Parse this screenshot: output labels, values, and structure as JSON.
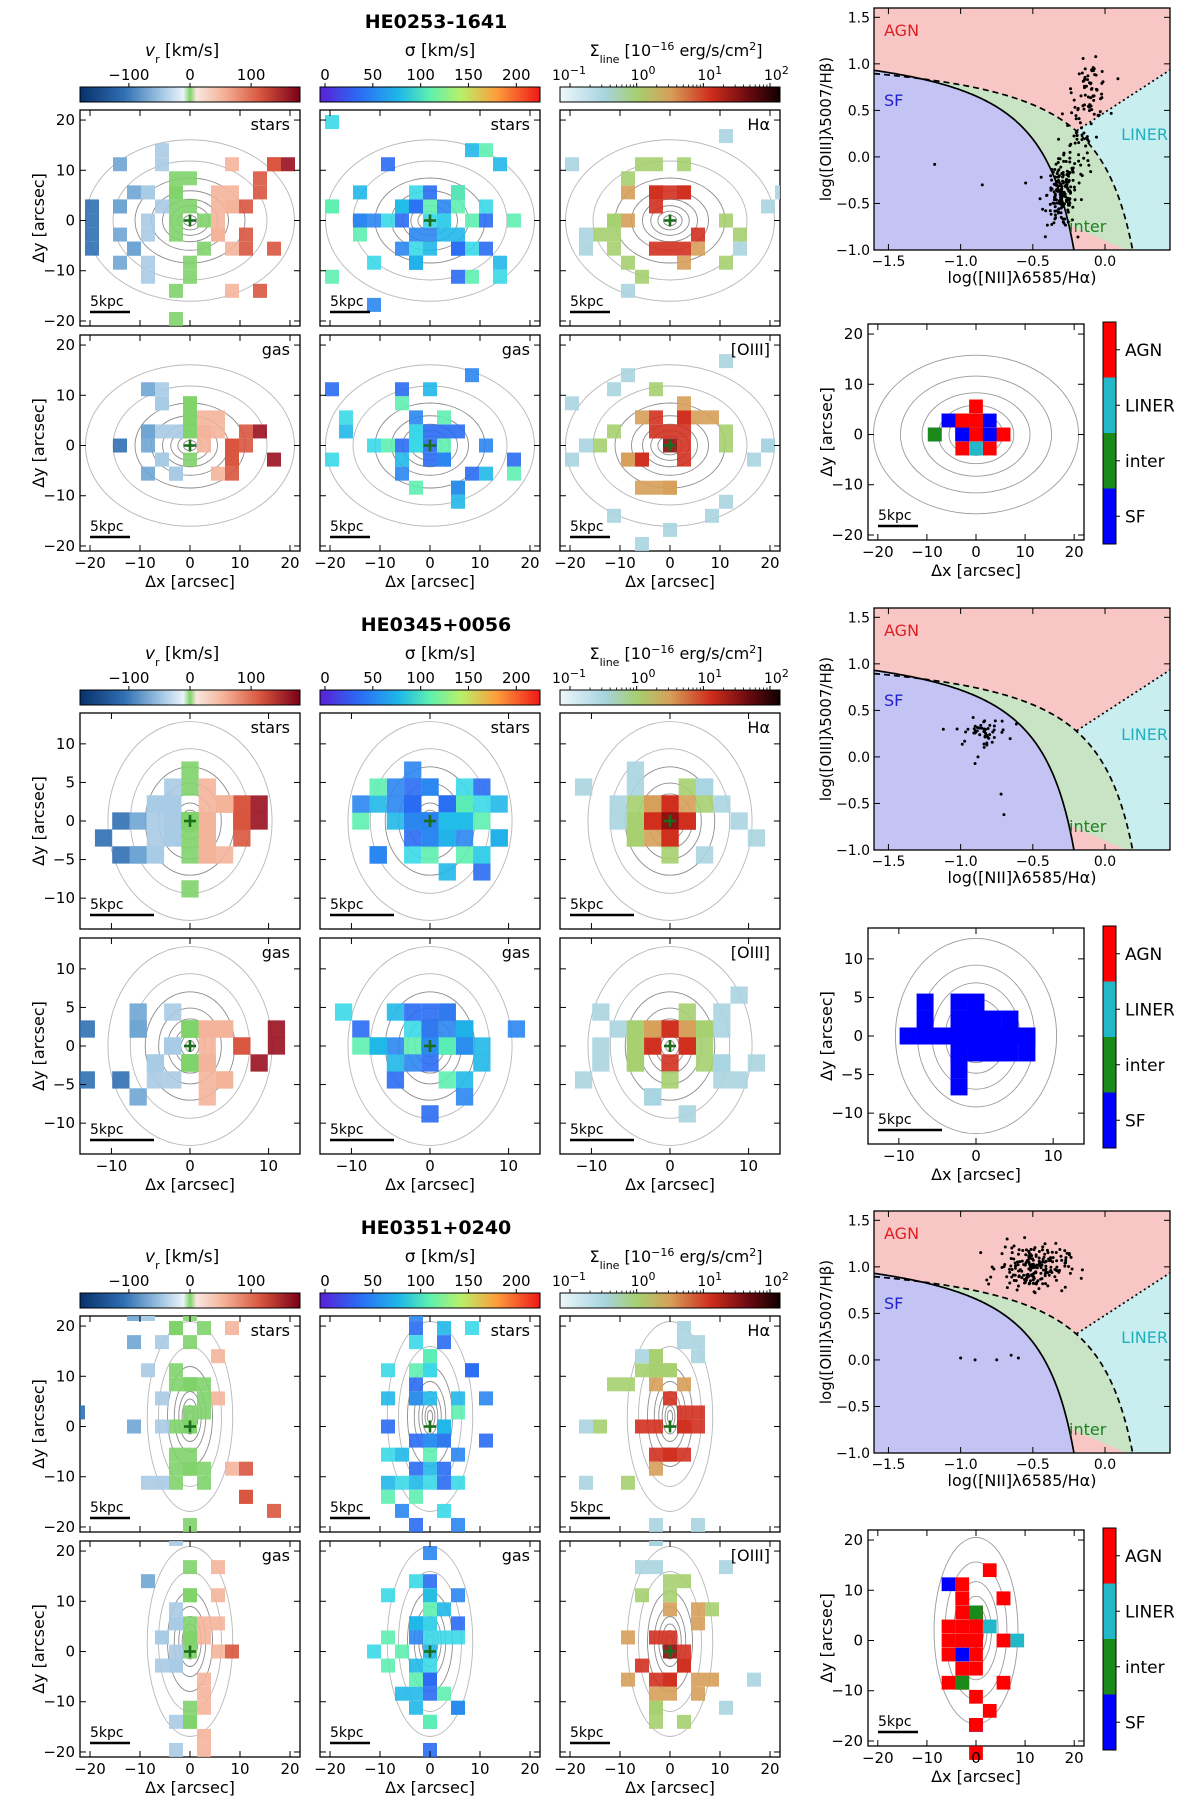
{
  "figure": {
    "labels": {
      "vr": "v",
      "vr_sub": "r",
      "vr_unit": " [km/s]",
      "sigma": "σ [km/s]",
      "sigma_line": "Σ",
      "sigma_line_sub": "line",
      "sigma_line_unit": " [10",
      "sigma_line_exp": "−16",
      "sigma_line_unit2": " erg/s/cm",
      "sigma_line_exp2": "2",
      "sigma_line_close": "]",
      "xlabel": "Δx [arcsec]",
      "ylabel": "Δy [arcsec]",
      "bpt_xlabel": "log([NII]λ6585/Hα)",
      "bpt_ylabel": "log([OIII]λ5007/Hβ)",
      "scale_bar": "5kpc",
      "stars": "stars",
      "gas": "gas",
      "halpha": "Hα",
      "oiii": "[OIII]",
      "agn": "AGN",
      "liner": "LINER",
      "inter": "inter",
      "sf": "SF"
    },
    "colorbars": {
      "vr_ticks": [
        "−100",
        "0",
        "100"
      ],
      "sigma_ticks": [
        "0",
        "50",
        "100",
        "150",
        "200"
      ],
      "flux_ticks": [
        "10",
        "10",
        "10",
        "10"
      ],
      "flux_exps": [
        "−1",
        "0",
        "1",
        "2"
      ],
      "class_ticks": [
        "AGN",
        "LINER",
        "inter",
        "SF"
      ]
    },
    "colors": {
      "agn_region": "#f9c6c6",
      "sf_region": "#c4c4f4",
      "inter_region": "#c8e4c4",
      "liner_region": "#c8eef0",
      "agn_text": "#e02020",
      "sf_text": "#2020d0",
      "inter_text": "#208020",
      "liner_text": "#20b0c0",
      "class_agn": "#ff0000",
      "class_liner": "#22b8c8",
      "class_inter": "#1a8a1a",
      "class_sf": "#0000ff"
    }
  },
  "chart_data": [
    {
      "type": "map-grid",
      "title": "HE0253-1641",
      "xlim": [
        -22,
        22
      ],
      "ylim": [
        -21,
        22
      ],
      "ticks": [
        -20,
        -10,
        0,
        10,
        20
      ],
      "bpt": {
        "type": "scatter",
        "xlim": [
          -1.6,
          0.45
        ],
        "ylim": [
          -1.0,
          1.6
        ],
        "xticks": [
          -1.5,
          -1.0,
          -0.5,
          0.0
        ],
        "yticks": [
          -1.0,
          -0.5,
          0.0,
          0.5,
          1.0,
          1.5
        ],
        "clusters": [
          {
            "cx": -0.3,
            "cy": -0.4,
            "sx": 0.05,
            "sy": 0.18,
            "n": 170
          },
          {
            "cx": -0.1,
            "cy": 0.72,
            "sx": 0.06,
            "sy": 0.15,
            "n": 65
          },
          {
            "cx": -0.2,
            "cy": 0.1,
            "sx": 0.06,
            "sy": 0.25,
            "n": 45
          }
        ],
        "outliers": [
          [
            -1.18,
            -0.08
          ],
          [
            -0.85,
            -0.3
          ],
          [
            -0.55,
            -0.28
          ],
          [
            -0.45,
            -0.45
          ]
        ]
      },
      "class_ylim": [
        -21,
        22
      ]
    },
    {
      "type": "map-grid",
      "title": "HE0345+0056",
      "xlim": [
        -14,
        14
      ],
      "ylim": [
        -14,
        14
      ],
      "ticks": [
        -10,
        0,
        10
      ],
      "yticks": [
        -10,
        -5,
        0,
        5,
        10
      ],
      "bpt": {
        "type": "scatter",
        "xlim": [
          -1.6,
          0.45
        ],
        "ylim": [
          -1.0,
          1.6
        ],
        "xticks": [
          -1.5,
          -1.0,
          -0.5,
          0.0
        ],
        "yticks": [
          -1.0,
          -0.5,
          0.0,
          0.5,
          1.0,
          1.5
        ],
        "clusters": [
          {
            "cx": -0.85,
            "cy": 0.27,
            "sx": 0.09,
            "sy": 0.07,
            "n": 50
          }
        ],
        "outliers": [
          [
            -0.9,
            -0.07
          ],
          [
            -0.72,
            -0.4
          ],
          [
            -0.7,
            -0.62
          ],
          [
            -0.88,
            0.0
          ]
        ]
      },
      "class_ylim": [
        -14,
        14
      ]
    },
    {
      "type": "map-grid",
      "title": "HE0351+0240",
      "xlim": [
        -22,
        22
      ],
      "ylim": [
        -21,
        22
      ],
      "ticks": [
        -20,
        -10,
        0,
        10,
        20
      ],
      "bpt": {
        "type": "scatter",
        "xlim": [
          -1.6,
          0.45
        ],
        "ylim": [
          -1.0,
          1.6
        ],
        "xticks": [
          -1.5,
          -1.0,
          -0.5,
          0.0
        ],
        "yticks": [
          -1.0,
          -0.5,
          0.0,
          0.5,
          1.0,
          1.5
        ],
        "clusters": [
          {
            "cx": -0.5,
            "cy": 1.0,
            "sx": 0.12,
            "sy": 0.12,
            "n": 200
          }
        ],
        "outliers": [
          [
            -0.6,
            0.02
          ],
          [
            -0.65,
            0.05
          ],
          [
            -0.75,
            0.0
          ],
          [
            -0.9,
            0.0
          ],
          [
            -1.0,
            0.02
          ]
        ]
      },
      "class_ylim": [
        -21,
        22
      ]
    }
  ]
}
